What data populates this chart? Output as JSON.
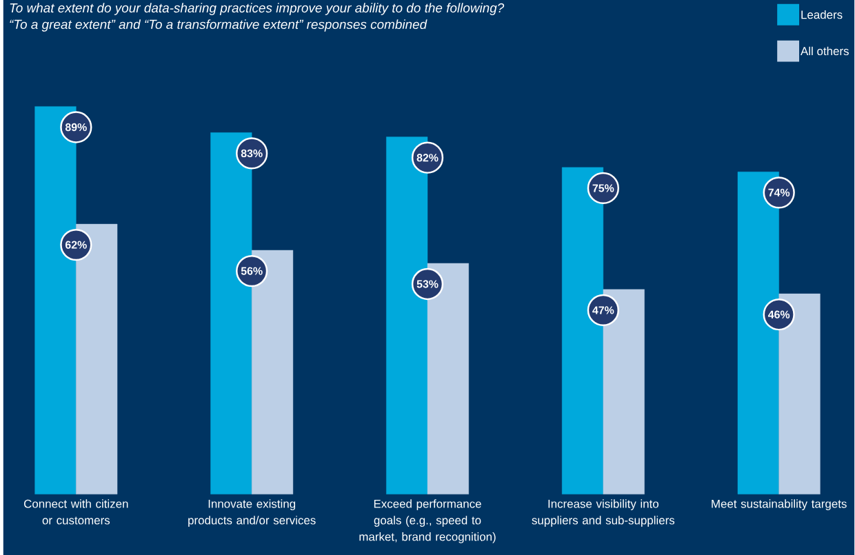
{
  "chart_data": {
    "type": "bar",
    "title": "To what extent do your data-sharing practices improve your ability to do the following?",
    "subtitle": "“To a great extent” and “To a transformative extent” responses combined",
    "categories": [
      "Connect with citizen or customers",
      "Innovate existing products and/or services",
      "Exceed performance goals (e.g., speed to market, brand recognition)",
      "Increase visibility into suppliers and sub-suppliers",
      "Meet sustainability targets"
    ],
    "series": [
      {
        "name": "Leaders",
        "color": "#00a9dc",
        "values": [
          89,
          83,
          82,
          75,
          74
        ],
        "value_labels": [
          "89%",
          "83%",
          "82%",
          "75%",
          "74%"
        ]
      },
      {
        "name": "All others",
        "color": "#bccfe6",
        "values": [
          62,
          56,
          53,
          47,
          46
        ],
        "value_labels": [
          "62%",
          "56%",
          "53%",
          "47%",
          "46%"
        ]
      }
    ],
    "legend": "top right"
  }
}
